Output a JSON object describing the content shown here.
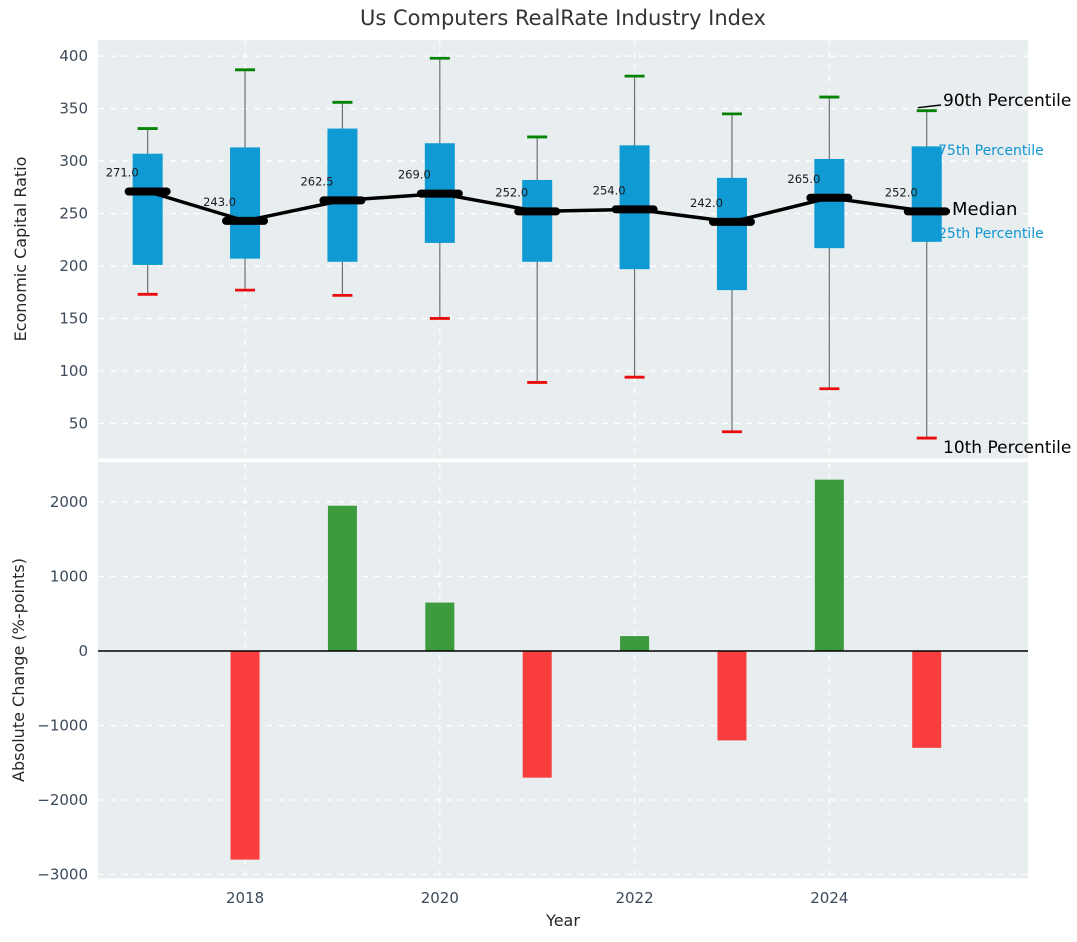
{
  "figure": {
    "title": "Us Computers RealRate Industry Index",
    "plot_background": "#e8edef",
    "grid_color": "#ffffff",
    "tick_color": "#3b4a5a",
    "text_color": "#262626"
  },
  "chart_data": [
    {
      "type": "box",
      "title": "Us Computers RealRate Industry Index",
      "ylabel": "Economic Capital Ratio",
      "x": [
        2017,
        2018,
        2019,
        2020,
        2021,
        2022,
        2023,
        2024,
        2025
      ],
      "series": [
        {
          "name": "p90",
          "values": [
            331,
            387,
            356,
            398,
            323,
            381,
            345,
            361,
            348
          ]
        },
        {
          "name": "p75",
          "values": [
            307,
            313,
            331,
            317,
            282,
            315,
            284,
            302,
            314
          ]
        },
        {
          "name": "median",
          "values": [
            271,
            243,
            262.5,
            269,
            252,
            254,
            242,
            265,
            252
          ]
        },
        {
          "name": "p25",
          "values": [
            201,
            207,
            204,
            222,
            204,
            197,
            177,
            217,
            223
          ]
        },
        {
          "name": "p10",
          "values": [
            173,
            177,
            172,
            150,
            89,
            94,
            42,
            83,
            36
          ]
        }
      ],
      "median_labels": [
        "271.0",
        "243.0",
        "262.5",
        "269.0",
        "252.0",
        "254.0",
        "242.0",
        "265.0",
        "252.0"
      ],
      "y_ticks": [
        {
          "v": 400,
          "label": "400"
        },
        {
          "v": 350,
          "label": "350"
        },
        {
          "v": 300,
          "label": "300"
        },
        {
          "v": 250,
          "label": "250"
        },
        {
          "v": 200,
          "label": "200"
        },
        {
          "v": 150,
          "label": "150"
        },
        {
          "v": 100,
          "label": "100"
        },
        {
          "v": 50,
          "label": "50"
        }
      ],
      "x_ticks": [
        {
          "v": 2018,
          "label": "2018"
        },
        {
          "v": 2020,
          "label": "2020"
        },
        {
          "v": 2022,
          "label": "2022"
        },
        {
          "v": 2024,
          "label": "2024"
        }
      ],
      "xlim": [
        2016.49,
        2026.04
      ],
      "ylim": [
        16.5,
        415.4
      ],
      "legend_position": "right-annotations",
      "grid": true,
      "annotations": {
        "p90": "90th Percentile",
        "p75": "75th Percentile",
        "median": "Median",
        "p25": "25th Percentile",
        "p10": "10th Percentile"
      },
      "colors": {
        "box": "#0f9ad3",
        "whisker": "#707070",
        "cap_top": "#038203",
        "cap_bottom": "#ea0c0c",
        "median_line": "#000000"
      }
    },
    {
      "type": "bar",
      "ylabel": "Absolute Change (%-points)",
      "xlabel": "Year",
      "x": [
        2018,
        2019,
        2020,
        2021,
        2022,
        2023,
        2024,
        2025
      ],
      "values": [
        -2800,
        1950,
        650,
        -1700,
        200,
        -1200,
        2300,
        -1300
      ],
      "y_ticks": [
        {
          "v": 2000,
          "label": "2000"
        },
        {
          "v": 1000,
          "label": "1000"
        },
        {
          "v": 0,
          "label": "0"
        },
        {
          "v": -1000,
          "label": "−1000"
        },
        {
          "v": -2000,
          "label": "−2000"
        },
        {
          "v": -3000,
          "label": "−3000"
        }
      ],
      "x_ticks": [
        {
          "v": 2018,
          "label": "2018"
        },
        {
          "v": 2020,
          "label": "2020"
        },
        {
          "v": 2022,
          "label": "2022"
        },
        {
          "v": 2024,
          "label": "2024"
        }
      ],
      "xlim": [
        2016.49,
        2026.04
      ],
      "ylim": [
        -3051,
        2537
      ],
      "grid": true,
      "colors": {
        "positive": "#3c9b3c",
        "negative": "#fa3e3e",
        "zero_line": "#000000"
      }
    }
  ]
}
